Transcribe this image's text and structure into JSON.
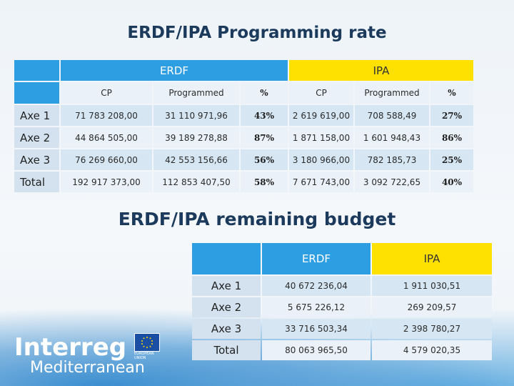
{
  "title1": "ERDF/IPA Programming rate",
  "title2": "ERDF/IPA remaining budget",
  "table1": {
    "group_headers": {
      "erdf": "ERDF",
      "ipa": "IPA"
    },
    "sub_headers": [
      "CP",
      "Programmed",
      "%",
      "CP",
      "Programmed",
      "%"
    ],
    "rows": [
      {
        "label": "Axe 1",
        "cells": [
          "71 783 208,00",
          "31 110 971,96",
          "43%",
          "2 619 619,00",
          "708 588,49",
          "27%"
        ]
      },
      {
        "label": "Axe 2",
        "cells": [
          "44 864 505,00",
          "39 189 278,88",
          "87%",
          "1 871 158,00",
          "1 601 948,43",
          "86%"
        ]
      },
      {
        "label": "Axe 3",
        "cells": [
          "76 269 660,00",
          "42 553 156,66",
          "56%",
          "3 180 966,00",
          "782 185,73",
          "25%"
        ]
      },
      {
        "label": "Total",
        "cells": [
          "192 917 373,00",
          "112 853 407,50",
          "58%",
          "7 671 743,00",
          "3 092 722,65",
          "40%"
        ]
      }
    ]
  },
  "table2": {
    "headers": {
      "erdf": "ERDF",
      "ipa": "IPA"
    },
    "rows": [
      {
        "label": "Axe 1",
        "erdf": "40 672 236,04",
        "ipa": "1 911 030,51"
      },
      {
        "label": "Axe 2",
        "erdf": "5 675 226,12",
        "ipa": "269 209,57"
      },
      {
        "label": "Axe 3",
        "erdf": "33 716 503,34",
        "ipa": "2 398 780,27"
      },
      {
        "label": "Total",
        "erdf": "80 063 965,50",
        "ipa": "4 579 020,35"
      }
    ]
  },
  "logo": {
    "line1": "Interreg",
    "line2": "Mediterranean",
    "eu_text": "EUROPEAN UNION"
  },
  "colors": {
    "erdf": "#2e9ee3",
    "ipa": "#ffe100"
  }
}
